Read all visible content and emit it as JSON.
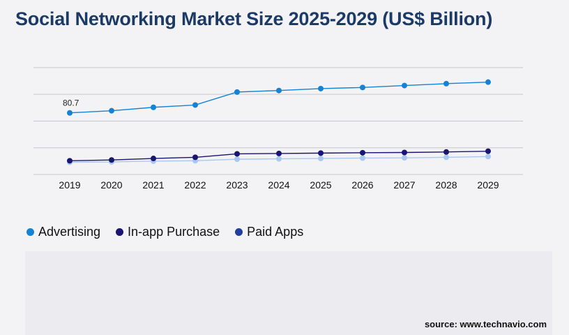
{
  "title": "Social Networking Market Size 2025-2029 (US$ Billion)",
  "source": "source: www.technavio.com",
  "colors": {
    "advertising": "#1582d4",
    "inapp": "#1a1570",
    "paidapps": "#a9c8f0",
    "paidapps_legend": "#1f3e9e",
    "grid": "#c8c8cc"
  },
  "chart_data": {
    "type": "line",
    "x": [
      "2019",
      "2020",
      "2021",
      "2022",
      "2023",
      "2024",
      "2025",
      "2026",
      "2027",
      "2028",
      "2029"
    ],
    "ylim": [
      0,
      160
    ],
    "grid": true,
    "legend_position": "bottom-left",
    "series": [
      {
        "name": "Advertising",
        "values": [
          80.7,
          83.5,
          88,
          91,
          108,
          110,
          112.5,
          114,
          116.5,
          119,
          121
        ]
      },
      {
        "name": "In-app Purchase",
        "values": [
          18,
          19,
          21,
          22.5,
          27,
          27.5,
          28,
          28.5,
          28.8,
          29.5,
          30.5
        ]
      },
      {
        "name": "Paid Apps",
        "values": [
          16,
          16.5,
          17.5,
          18,
          20,
          20.5,
          21,
          21.5,
          21.8,
          22.5,
          23.5
        ]
      }
    ],
    "annotations": [
      {
        "series": "Advertising",
        "x": "2019",
        "label": "80.7"
      }
    ]
  }
}
